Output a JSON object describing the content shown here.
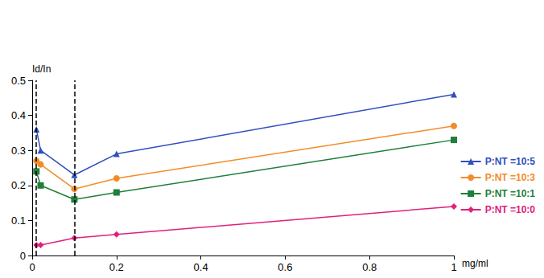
{
  "chart_data": {
    "type": "line",
    "x_label": "mg/ml",
    "y_label": "Id/In",
    "xlim": [
      0,
      1
    ],
    "xticks": [
      0,
      0.2,
      0.4,
      0.6,
      0.8,
      1
    ],
    "ylim": [
      0,
      0.5
    ],
    "yticks": [
      0,
      0.1,
      0.2,
      0.3,
      0.4,
      0.5
    ],
    "grid": false,
    "legend": "right",
    "vlines": [
      0.01,
      0.1
    ],
    "x": [
      0.01,
      0.02,
      0.1,
      0.2,
      1
    ],
    "series": [
      {
        "name": "P:NT =10:5",
        "color": "#2f4fbf",
        "marker": "triangle",
        "values": [
          0.36,
          0.3,
          0.23,
          0.29,
          0.46
        ]
      },
      {
        "name": "P:NT =10:3",
        "color": "#f28c28",
        "marker": "circle",
        "values": [
          0.27,
          0.26,
          0.19,
          0.22,
          0.37
        ]
      },
      {
        "name": "P:NT =10:1",
        "color": "#1e7f3a",
        "marker": "square",
        "values": [
          0.24,
          0.2,
          0.16,
          0.18,
          0.33
        ]
      },
      {
        "name": "P:NT =10:0",
        "color": "#e0207a",
        "marker": "diamond",
        "values": [
          0.03,
          0.03,
          0.05,
          0.06,
          0.14
        ]
      }
    ]
  }
}
